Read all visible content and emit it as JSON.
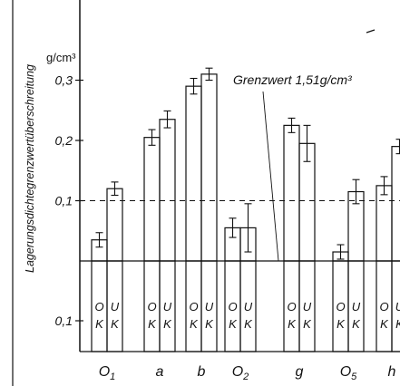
{
  "chart_data": {
    "type": "bar",
    "ylabel": "Lagerungsdichtegrenzwertüberschreitung",
    "unit": "g/cm³",
    "yticks_upper": [
      "0,3",
      "0,2",
      "0,1"
    ],
    "ytick_lower": "0,1",
    "ylim_upper": [
      0,
      0.35
    ],
    "threshold_label": "Grenzwert 1,51g/cm³",
    "reference_value": 0.1,
    "categories": [
      {
        "label": "O",
        "sub": "1"
      },
      {
        "label": "a",
        "sub": ""
      },
      {
        "label": "b",
        "sub": ""
      },
      {
        "label": "O",
        "sub": "2"
      },
      {
        "label": "g",
        "sub": ""
      },
      {
        "label": "O",
        "sub": "5"
      },
      {
        "label": "h",
        "sub": ""
      }
    ],
    "series": [
      {
        "name": "OK",
        "marker": [
          "O",
          "K"
        ],
        "values": [
          0.035,
          0.205,
          0.29,
          0.055,
          0.225,
          0.015,
          0.125
        ],
        "errors": [
          0.012,
          0.013,
          0.013,
          0.016,
          0.012,
          0.012,
          0.015
        ]
      },
      {
        "name": "UK",
        "marker": [
          "U",
          "K"
        ],
        "values": [
          0.12,
          0.235,
          0.31,
          0.055,
          0.195,
          0.115,
          0.19
        ],
        "errors": [
          0.011,
          0.014,
          0.01,
          0.04,
          0.03,
          0.02,
          0.012
        ]
      }
    ]
  }
}
